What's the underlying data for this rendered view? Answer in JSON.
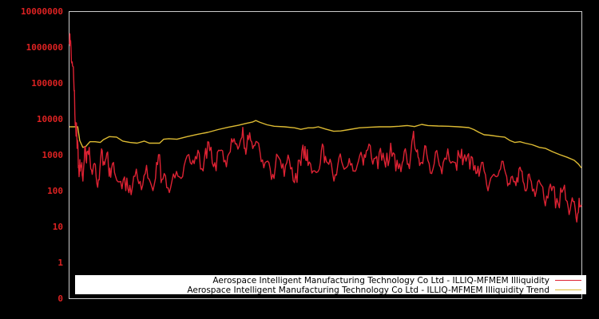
{
  "chart_data": {
    "type": "line",
    "title": "",
    "xlabel": "",
    "ylabel": "",
    "yscale": "log",
    "y_tick_labels": [
      "10000000",
      "1000000",
      "100000",
      "10000",
      "1000",
      "100",
      "10",
      "1",
      "0"
    ],
    "y_tick_values": [
      10000000,
      1000000,
      100000,
      10000,
      1000,
      100,
      10,
      1,
      0.1
    ],
    "ylim": [
      0.1,
      10000000
    ],
    "grid": false,
    "legend_position": "bottom-inside",
    "background": "#000000",
    "axis_color": "#cccccc",
    "tick_label_color": "#dd2222",
    "x_note": "x-axis has no tick labels; series sampled by horizontal pixel position within plot (0 = left edge, 1 = right edge)",
    "series": [
      {
        "name": "Aerospace Intelligent Manufacturing Technology Co Ltd - ILLIQ-MFMEM Illiquidity",
        "color": "#dd2233",
        "points": [
          [
            0.0,
            1200000
          ],
          [
            0.003,
            900000
          ],
          [
            0.006,
            300000
          ],
          [
            0.009,
            60000
          ],
          [
            0.012,
            8000
          ],
          [
            0.015,
            1500
          ],
          [
            0.018,
            500
          ],
          [
            0.021,
            350
          ],
          [
            0.024,
            600
          ],
          [
            0.027,
            300
          ],
          [
            0.031,
            1600
          ],
          [
            0.034,
            1200
          ],
          [
            0.04,
            800
          ],
          [
            0.046,
            400
          ],
          [
            0.052,
            250
          ],
          [
            0.058,
            200
          ],
          [
            0.064,
            1300
          ],
          [
            0.07,
            700
          ],
          [
            0.076,
            500
          ],
          [
            0.082,
            400
          ],
          [
            0.09,
            250
          ],
          [
            0.1,
            180
          ],
          [
            0.11,
            100
          ],
          [
            0.118,
            140
          ],
          [
            0.128,
            250
          ],
          [
            0.138,
            180
          ],
          [
            0.148,
            300
          ],
          [
            0.158,
            170
          ],
          [
            0.168,
            220
          ],
          [
            0.176,
            1000
          ],
          [
            0.18,
            200
          ],
          [
            0.19,
            120
          ],
          [
            0.2,
            180
          ],
          [
            0.212,
            250
          ],
          [
            0.224,
            500
          ],
          [
            0.236,
            600
          ],
          [
            0.246,
            900
          ],
          [
            0.256,
            400
          ],
          [
            0.266,
            1500
          ],
          [
            0.274,
            1300
          ],
          [
            0.284,
            600
          ],
          [
            0.294,
            1300
          ],
          [
            0.304,
            700
          ],
          [
            0.314,
            1200
          ],
          [
            0.324,
            2000
          ],
          [
            0.334,
            2500
          ],
          [
            0.34,
            3000
          ],
          [
            0.346,
            1500
          ],
          [
            0.354,
            2500
          ],
          [
            0.362,
            1800
          ],
          [
            0.372,
            1200
          ],
          [
            0.382,
            600
          ],
          [
            0.392,
            400
          ],
          [
            0.402,
            450
          ],
          [
            0.412,
            700
          ],
          [
            0.422,
            500
          ],
          [
            0.432,
            400
          ],
          [
            0.442,
            300
          ],
          [
            0.452,
            500
          ],
          [
            0.46,
            1700
          ],
          [
            0.466,
            500
          ],
          [
            0.476,
            350
          ],
          [
            0.488,
            400
          ],
          [
            0.496,
            1700
          ],
          [
            0.504,
            600
          ],
          [
            0.514,
            300
          ],
          [
            0.524,
            500
          ],
          [
            0.534,
            500
          ],
          [
            0.544,
            500
          ],
          [
            0.554,
            350
          ],
          [
            0.562,
            500
          ],
          [
            0.572,
            800
          ],
          [
            0.58,
            1300
          ],
          [
            0.59,
            800
          ],
          [
            0.6,
            900
          ],
          [
            0.61,
            700
          ],
          [
            0.62,
            1100
          ],
          [
            0.63,
            900
          ],
          [
            0.64,
            700
          ],
          [
            0.65,
            600
          ],
          [
            0.658,
            1000
          ],
          [
            0.666,
            800
          ],
          [
            0.672,
            4500
          ],
          [
            0.678,
            1200
          ],
          [
            0.684,
            500
          ],
          [
            0.692,
            1000
          ],
          [
            0.7,
            700
          ],
          [
            0.71,
            400
          ],
          [
            0.72,
            800
          ],
          [
            0.73,
            600
          ],
          [
            0.742,
            700
          ],
          [
            0.754,
            600
          ],
          [
            0.764,
            800
          ],
          [
            0.772,
            1000
          ],
          [
            0.782,
            400
          ],
          [
            0.792,
            500
          ],
          [
            0.8,
            250
          ],
          [
            0.81,
            350
          ],
          [
            0.82,
            150
          ],
          [
            0.832,
            250
          ],
          [
            0.842,
            400
          ],
          [
            0.852,
            300
          ],
          [
            0.86,
            150
          ],
          [
            0.87,
            180
          ],
          [
            0.878,
            400
          ],
          [
            0.886,
            180
          ],
          [
            0.894,
            120
          ],
          [
            0.902,
            180
          ],
          [
            0.912,
            100
          ],
          [
            0.922,
            140
          ],
          [
            0.932,
            70
          ],
          [
            0.942,
            100
          ],
          [
            0.952,
            60
          ],
          [
            0.962,
            90
          ],
          [
            0.972,
            50
          ],
          [
            0.98,
            45
          ],
          [
            0.988,
            30
          ],
          [
            0.994,
            25
          ],
          [
            1.0,
            40
          ]
        ]
      },
      {
        "name": "Aerospace Intelligent Manufacturing Technology Co Ltd - ILLIQ-MFMEM Illiquidity Trend",
        "color": "#ddbb33",
        "points": [
          [
            0.0,
            6000
          ],
          [
            0.016,
            6000
          ],
          [
            0.02,
            2500
          ],
          [
            0.026,
            1600
          ],
          [
            0.032,
            1700
          ],
          [
            0.04,
            2300
          ],
          [
            0.05,
            2300
          ],
          [
            0.06,
            2200
          ],
          [
            0.066,
            2600
          ],
          [
            0.078,
            3200
          ],
          [
            0.092,
            3100
          ],
          [
            0.104,
            2400
          ],
          [
            0.118,
            2200
          ],
          [
            0.132,
            2100
          ],
          [
            0.146,
            2400
          ],
          [
            0.156,
            2100
          ],
          [
            0.176,
            2100
          ],
          [
            0.184,
            2700
          ],
          [
            0.194,
            2800
          ],
          [
            0.21,
            2700
          ],
          [
            0.23,
            3200
          ],
          [
            0.25,
            3700
          ],
          [
            0.27,
            4200
          ],
          [
            0.29,
            5000
          ],
          [
            0.31,
            5800
          ],
          [
            0.33,
            6600
          ],
          [
            0.346,
            7500
          ],
          [
            0.358,
            8200
          ],
          [
            0.364,
            9000
          ],
          [
            0.372,
            8000
          ],
          [
            0.386,
            6800
          ],
          [
            0.4,
            6200
          ],
          [
            0.42,
            6000
          ],
          [
            0.44,
            5600
          ],
          [
            0.452,
            5100
          ],
          [
            0.466,
            5600
          ],
          [
            0.476,
            5600
          ],
          [
            0.486,
            6000
          ],
          [
            0.5,
            5200
          ],
          [
            0.516,
            4500
          ],
          [
            0.53,
            4600
          ],
          [
            0.546,
            5000
          ],
          [
            0.566,
            5600
          ],
          [
            0.586,
            5800
          ],
          [
            0.606,
            6000
          ],
          [
            0.626,
            6000
          ],
          [
            0.644,
            6200
          ],
          [
            0.66,
            6500
          ],
          [
            0.674,
            6100
          ],
          [
            0.688,
            7000
          ],
          [
            0.7,
            6500
          ],
          [
            0.72,
            6300
          ],
          [
            0.74,
            6200
          ],
          [
            0.76,
            6000
          ],
          [
            0.78,
            5700
          ],
          [
            0.79,
            5000
          ],
          [
            0.8,
            4200
          ],
          [
            0.81,
            3600
          ],
          [
            0.82,
            3500
          ],
          [
            0.84,
            3200
          ],
          [
            0.85,
            3100
          ],
          [
            0.86,
            2500
          ],
          [
            0.87,
            2200
          ],
          [
            0.88,
            2300
          ],
          [
            0.89,
            2100
          ],
          [
            0.904,
            1900
          ],
          [
            0.918,
            1600
          ],
          [
            0.93,
            1500
          ],
          [
            0.944,
            1200
          ],
          [
            0.958,
            1000
          ],
          [
            0.972,
            850
          ],
          [
            0.986,
            700
          ],
          [
            0.994,
            550
          ],
          [
            1.0,
            430
          ]
        ]
      }
    ]
  },
  "legend": {
    "items": [
      {
        "label": "Aerospace Intelligent Manufacturing Technology Co Ltd - ILLIQ-MFMEM Illiquidity",
        "color": "#dd2233"
      },
      {
        "label": "Aerospace Intelligent Manufacturing Technology Co Ltd - ILLIQ-MFMEM Illiquidity Trend",
        "color": "#ddbb33"
      }
    ]
  }
}
